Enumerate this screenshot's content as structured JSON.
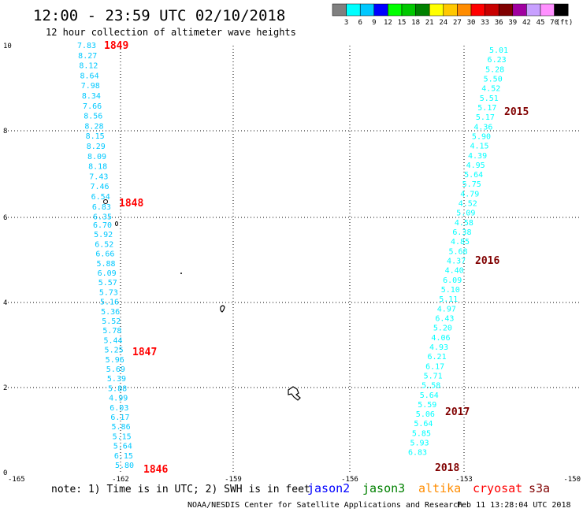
{
  "header": {
    "title": "12:00 - 23:59 UTC 02/10/2018",
    "subtitle": "12 hour collection of altimeter wave heights"
  },
  "legend": {
    "unit": "(ft)",
    "colors": [
      "#808080",
      "#00ffff",
      "#00c8ff",
      "#0000ff",
      "#00ff00",
      "#00c800",
      "#008000",
      "#ffff00",
      "#ffc800",
      "#ff8c00",
      "#ff0000",
      "#c80000",
      "#800000",
      "#a000a0",
      "#c8a0ff",
      "#ff90ff",
      "#000000"
    ],
    "labels": [
      "3",
      "6",
      "9",
      "12",
      "15",
      "18",
      "21",
      "24",
      "27",
      "30",
      "33",
      "36",
      "39",
      "42",
      "45",
      "70"
    ]
  },
  "map": {
    "x_ticks": [
      "-165",
      "-162",
      "-159",
      "-156",
      "-153",
      "-150"
    ],
    "y_ticks": [
      "0",
      "2",
      "4",
      "6",
      "8",
      "10"
    ]
  },
  "passes": [
    {
      "id": "1849",
      "values": [
        "7.83",
        "8.27",
        "8.12",
        "8.64",
        "7.98",
        "8.34",
        "7.66",
        "8.56",
        "8.28",
        "8.15",
        "8.29",
        "8.09",
        "8.18",
        "7.43",
        "7.46",
        "6.54",
        "6.83",
        "6.35"
      ]
    },
    {
      "id": "1848",
      "values": [
        "6.70",
        "5.92",
        "6.52",
        "6.66",
        "5.88",
        "6.09",
        "5.57",
        "5.73",
        "5.16",
        "5.36",
        "5.52",
        "5.78",
        "5.44",
        "5.25",
        "5.96",
        "5.69",
        "5.39",
        "5.88",
        "4.99",
        "6.03",
        "6.17",
        "5.86",
        "5.15",
        "5.64",
        "6.15",
        "5.80"
      ]
    },
    {
      "id": "2015",
      "values": [
        "5.01",
        "6.23",
        "5.28",
        "5.50",
        "4.52",
        "5.51",
        "5.17",
        "5.17",
        "4.36",
        "5.90",
        "4.15",
        "4.39",
        "4.95",
        "5.64",
        "5.75",
        "4.79",
        "4.52",
        "5.09",
        "4.58",
        "6.38",
        "4.85",
        "5.68",
        "4.37",
        "4.40",
        "6.09",
        "5.10",
        "5.11",
        "4.97",
        "6.43",
        "5.20",
        "4.06",
        "4.93",
        "6.21",
        "6.17",
        "5.71",
        "5.58",
        "5.64",
        "5.59",
        "5.06",
        "5.64",
        "5.85",
        "5.93",
        "6.83"
      ]
    }
  ],
  "pass_labels": [
    {
      "id": "1849",
      "color": "#ff0000"
    },
    {
      "id": "1848",
      "color": "#ff0000"
    },
    {
      "id": "1847",
      "color": "#ff0000"
    },
    {
      "id": "1846",
      "color": "#ff0000"
    },
    {
      "id": "2015",
      "color": "#800000"
    },
    {
      "id": "2016",
      "color": "#800000"
    },
    {
      "id": "2017",
      "color": "#800000"
    },
    {
      "id": "2018",
      "color": "#800000"
    }
  ],
  "satellites": [
    {
      "name": "jason2",
      "color": "#0000ff"
    },
    {
      "name": "jason3",
      "color": "#008000"
    },
    {
      "name": "altika",
      "color": "#ff8c00"
    },
    {
      "name": "cryosat",
      "color": "#ff0000"
    },
    {
      "name": "s3a",
      "color": "#800000"
    }
  ],
  "footer": {
    "note": "note: 1) Time is in UTC; 2) SWH is in feet",
    "credit": "NOAA/NESDIS Center for Satellite Applications and Research",
    "timestamp": "Feb 11 13:28:04 UTC 2018"
  }
}
